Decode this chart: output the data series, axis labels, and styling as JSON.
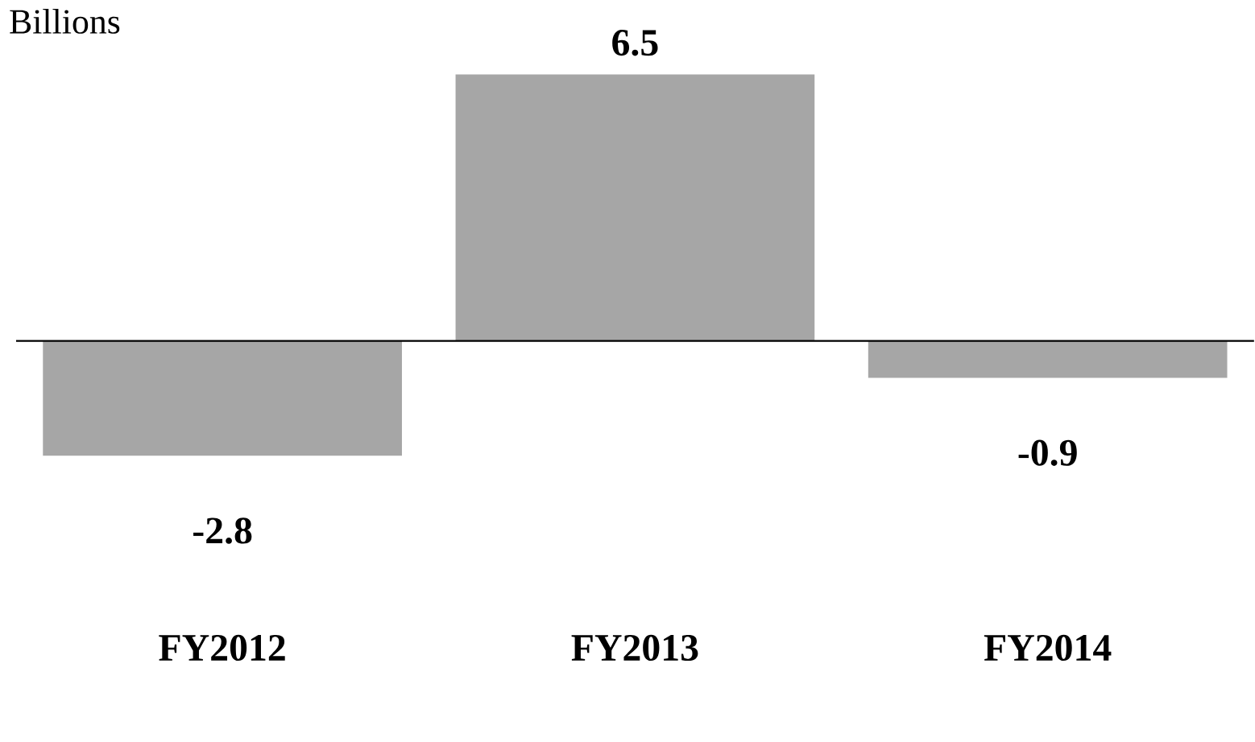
{
  "chart_data": {
    "type": "bar",
    "ylabel": "Billions",
    "categories": [
      "FY2012",
      "FY2013",
      "FY2014"
    ],
    "values": [
      -2.8,
      6.5,
      -0.9
    ],
    "color": "#a6a6a6",
    "data_labels": true
  }
}
